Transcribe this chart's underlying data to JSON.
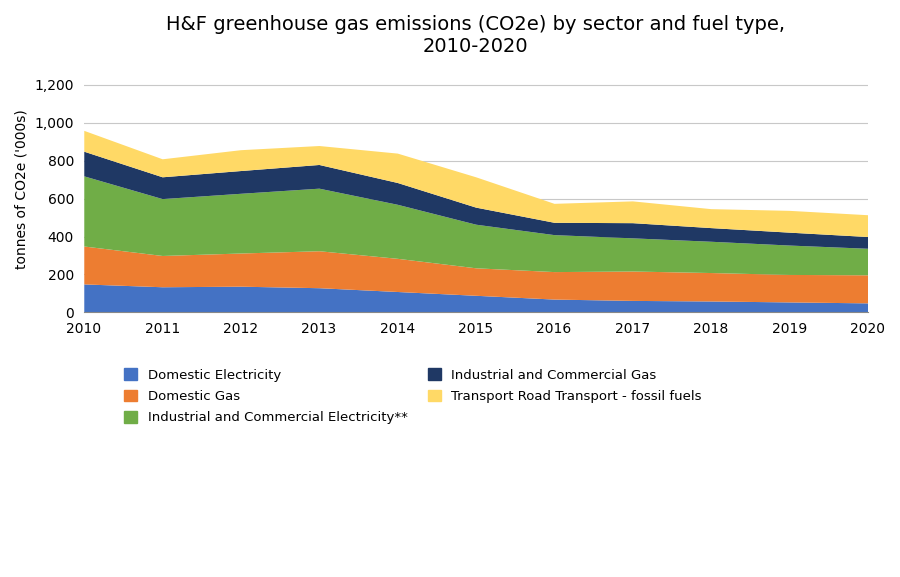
{
  "title": "H&F greenhouse gas emissions (CO2e) by sector and fuel type,\n2010-2020",
  "ylabel": "tonnes of CO2e ('000s)",
  "years": [
    2010,
    2011,
    2012,
    2013,
    2014,
    2015,
    2016,
    2017,
    2018,
    2019,
    2020
  ],
  "series": {
    "Domestic Electricity": [
      150,
      135,
      138,
      130,
      110,
      90,
      70,
      63,
      60,
      55,
      50
    ],
    "Domestic Gas": [
      200,
      165,
      175,
      195,
      175,
      145,
      145,
      155,
      150,
      145,
      148
    ],
    "Industrial and Commercial Electricity**": [
      370,
      300,
      315,
      330,
      285,
      230,
      195,
      175,
      165,
      155,
      140
    ],
    "Industrial and Commercial Gas": [
      130,
      115,
      120,
      125,
      115,
      90,
      65,
      80,
      72,
      68,
      62
    ],
    "Transport Road Transport - fossil fuels": [
      110,
      95,
      110,
      100,
      155,
      160,
      100,
      115,
      100,
      115,
      115
    ]
  },
  "colors": {
    "Domestic Electricity": "#4472C4",
    "Domestic Gas": "#ED7D31",
    "Industrial and Commercial Electricity**": "#70AD47",
    "Industrial and Commercial Gas": "#1F3864",
    "Transport Road Transport - fossil fuels": "#FFD966"
  },
  "ylim": [
    0,
    1300
  ],
  "yticks": [
    0,
    200,
    400,
    600,
    800,
    1000,
    1200
  ],
  "ytick_labels": [
    "0",
    "200",
    "400",
    "600",
    "800",
    "1,000",
    "1,200"
  ],
  "background_color": "#FFFFFF",
  "grid_color": "#C8C8C8",
  "title_fontsize": 14,
  "axis_fontsize": 10,
  "legend_fontsize": 9.5
}
